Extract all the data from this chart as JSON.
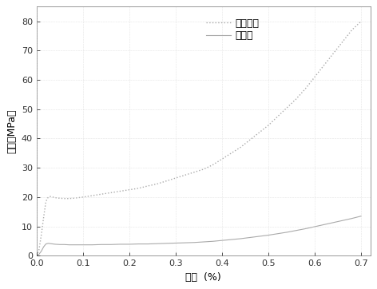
{
  "title": "",
  "xlabel": "应变  (%)",
  "ylabel": "应力（MPa）",
  "xlim": [
    0.0,
    0.72
  ],
  "ylim": [
    0.0,
    85
  ],
  "xticks": [
    0.0,
    0.1,
    0.2,
    0.3,
    0.4,
    0.5,
    0.6,
    0.7
  ],
  "xticklabels": [
    "0.0",
    "0.1",
    "0.2",
    "0.3",
    "0.4",
    "0.5",
    "0.6",
    "0.7"
  ],
  "yticks": [
    0,
    10,
    20,
    30,
    40,
    50,
    60,
    70,
    80
  ],
  "composite_label": "复合材料",
  "foam_label": "泡沫铝",
  "line_color": "#aaaaaa",
  "background_color": "#ffffff",
  "grid_color": "#cccccc",
  "composite_x": [
    0.0,
    0.005,
    0.01,
    0.015,
    0.02,
    0.025,
    0.03,
    0.04,
    0.05,
    0.06,
    0.07,
    0.08,
    0.09,
    0.1,
    0.12,
    0.14,
    0.16,
    0.18,
    0.2,
    0.22,
    0.24,
    0.26,
    0.28,
    0.3,
    0.32,
    0.34,
    0.36,
    0.38,
    0.4,
    0.42,
    0.44,
    0.46,
    0.48,
    0.5,
    0.52,
    0.54,
    0.56,
    0.58,
    0.6,
    0.62,
    0.64,
    0.66,
    0.68,
    0.7
  ],
  "composite_y": [
    0.0,
    2.0,
    7.0,
    13.0,
    18.5,
    20.0,
    20.2,
    19.8,
    19.6,
    19.5,
    19.5,
    19.6,
    19.8,
    20.0,
    20.5,
    21.0,
    21.5,
    22.0,
    22.5,
    23.0,
    23.8,
    24.5,
    25.5,
    26.5,
    27.5,
    28.5,
    29.5,
    31.0,
    33.0,
    35.0,
    37.0,
    39.5,
    42.0,
    44.5,
    47.5,
    50.5,
    53.5,
    57.0,
    61.0,
    65.0,
    69.0,
    73.0,
    77.0,
    80.0
  ],
  "foam_x": [
    0.0,
    0.005,
    0.01,
    0.015,
    0.02,
    0.025,
    0.03,
    0.04,
    0.05,
    0.06,
    0.07,
    0.08,
    0.09,
    0.1,
    0.12,
    0.14,
    0.16,
    0.18,
    0.2,
    0.22,
    0.24,
    0.26,
    0.28,
    0.3,
    0.32,
    0.34,
    0.36,
    0.38,
    0.4,
    0.42,
    0.44,
    0.46,
    0.48,
    0.5,
    0.52,
    0.54,
    0.56,
    0.58,
    0.6,
    0.62,
    0.64,
    0.66,
    0.68,
    0.7
  ],
  "foam_y": [
    0.0,
    0.5,
    1.5,
    3.0,
    4.0,
    4.2,
    4.1,
    3.9,
    3.8,
    3.8,
    3.7,
    3.7,
    3.7,
    3.7,
    3.7,
    3.8,
    3.8,
    3.9,
    3.9,
    4.0,
    4.0,
    4.1,
    4.2,
    4.3,
    4.4,
    4.5,
    4.7,
    4.9,
    5.2,
    5.5,
    5.8,
    6.2,
    6.6,
    7.0,
    7.5,
    8.0,
    8.6,
    9.2,
    9.9,
    10.6,
    11.3,
    12.0,
    12.7,
    13.5
  ]
}
